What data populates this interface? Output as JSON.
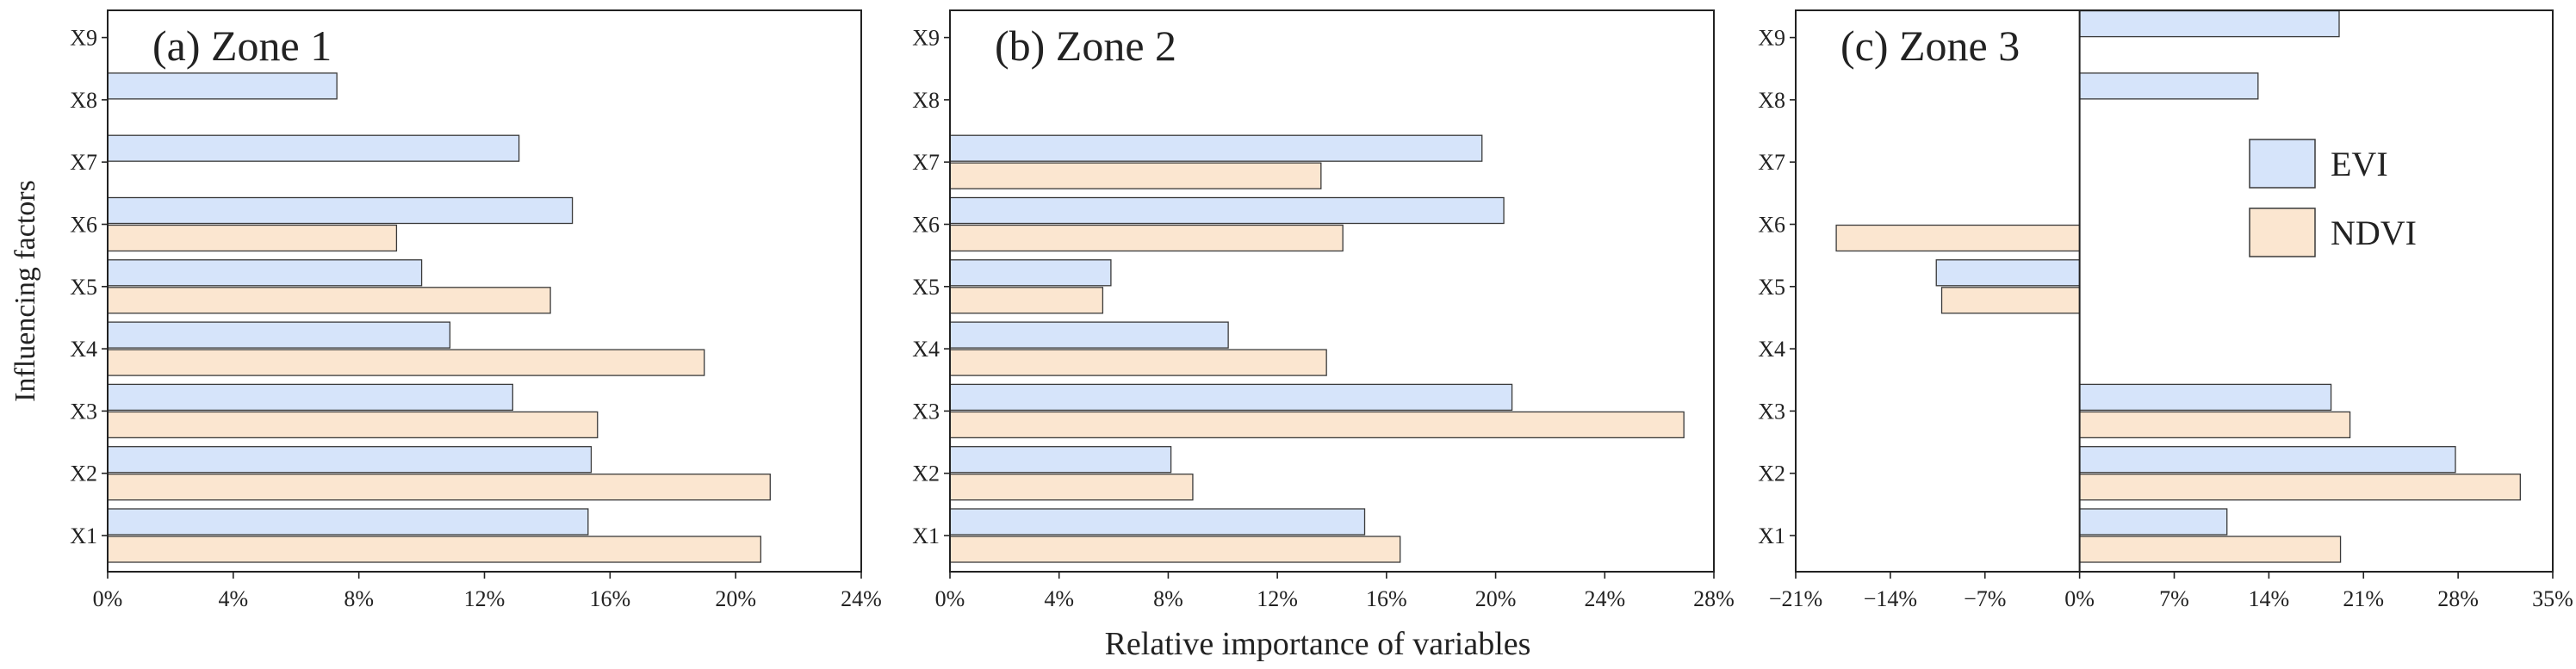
{
  "figure": {
    "ylabel": "Influencing factors",
    "xlabel": "Relative importance of variables"
  },
  "legend": {
    "items": [
      {
        "label": "EVI",
        "color": "#d6e4fa"
      },
      {
        "label": "NDVI",
        "color": "#fbe6d0"
      }
    ]
  },
  "colors": {
    "evi_fill": "#d6e4fa",
    "ndvi_fill": "#fbe6d0",
    "bar_stroke": "#3a3a3a"
  },
  "chart_data": [
    {
      "type": "bar",
      "orientation": "horizontal",
      "title": "(a) Zone 1",
      "categories": [
        "X1",
        "X2",
        "X3",
        "X4",
        "X5",
        "X6",
        "X7",
        "X8",
        "X9"
      ],
      "series": [
        {
          "name": "EVI",
          "values": [
            15.3,
            15.4,
            12.9,
            10.9,
            10.0,
            14.8,
            13.1,
            7.3,
            null
          ]
        },
        {
          "name": "NDVI",
          "values": [
            20.8,
            21.1,
            15.6,
            19.0,
            14.1,
            9.2,
            null,
            null,
            null
          ]
        }
      ],
      "xlim": [
        0,
        24
      ],
      "xticks": [
        "0%",
        "4%",
        "8%",
        "12%",
        "16%",
        "20%",
        "24%"
      ],
      "xtick_values": [
        0,
        4,
        8,
        12,
        16,
        20,
        24
      ]
    },
    {
      "type": "bar",
      "orientation": "horizontal",
      "title": "(b) Zone 2",
      "categories": [
        "X1",
        "X2",
        "X3",
        "X4",
        "X5",
        "X6",
        "X7",
        "X8",
        "X9"
      ],
      "series": [
        {
          "name": "EVI",
          "values": [
            15.2,
            8.1,
            20.6,
            10.2,
            5.9,
            20.3,
            19.5,
            null,
            null
          ]
        },
        {
          "name": "NDVI",
          "values": [
            16.5,
            8.9,
            26.9,
            13.8,
            5.6,
            14.4,
            13.6,
            null,
            null
          ]
        }
      ],
      "xlim": [
        0,
        28
      ],
      "xticks": [
        "0%",
        "4%",
        "8%",
        "12%",
        "16%",
        "20%",
        "24%",
        "28%"
      ],
      "xtick_values": [
        0,
        4,
        8,
        12,
        16,
        20,
        24,
        28
      ]
    },
    {
      "type": "bar",
      "orientation": "horizontal",
      "title": "(c) Zone 3",
      "categories": [
        "X1",
        "X2",
        "X3",
        "X4",
        "X5",
        "X6",
        "X7",
        "X8",
        "X9"
      ],
      "series": [
        {
          "name": "EVI",
          "values": [
            10.9,
            27.8,
            18.6,
            null,
            -10.6,
            null,
            null,
            13.2,
            19.2
          ]
        },
        {
          "name": "NDVI",
          "values": [
            19.3,
            32.6,
            20.0,
            null,
            -10.2,
            -18.0,
            null,
            null,
            null
          ]
        }
      ],
      "xlim": [
        -21,
        35
      ],
      "xticks": [
        "−21%",
        "−14%",
        "−7%",
        "0%",
        "7%",
        "14%",
        "21%",
        "28%",
        "35%"
      ],
      "xtick_values": [
        -21,
        -14,
        -7,
        0,
        7,
        14,
        21,
        28,
        35
      ]
    }
  ]
}
